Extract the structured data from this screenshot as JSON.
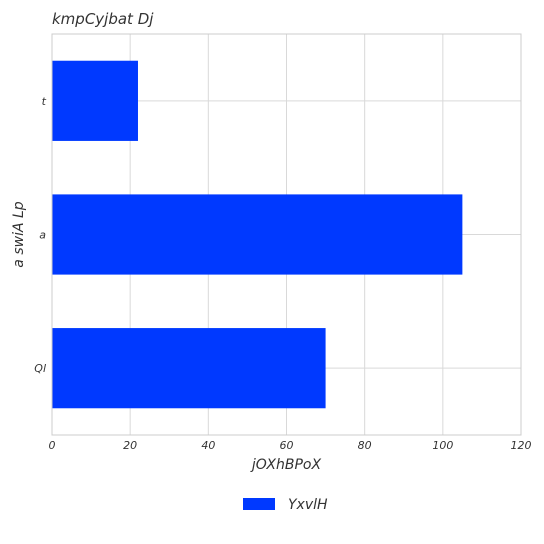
{
  "chart_data": {
    "type": "bar",
    "orientation": "horizontal",
    "title": "kmpCyjbat Dj",
    "xlabel": "jOXhBPoX",
    "ylabel": "a swiA Lp",
    "categories": [
      "Ql",
      "a",
      "t"
    ],
    "series": [
      {
        "name": "YxvlH",
        "values": [
          70,
          105,
          22
        ],
        "color": "#0039ff"
      }
    ],
    "xlim": [
      0,
      120
    ],
    "xticks": [
      0,
      20,
      40,
      60,
      80,
      100,
      120
    ],
    "grid": true,
    "legend_position": "bottom-center"
  }
}
